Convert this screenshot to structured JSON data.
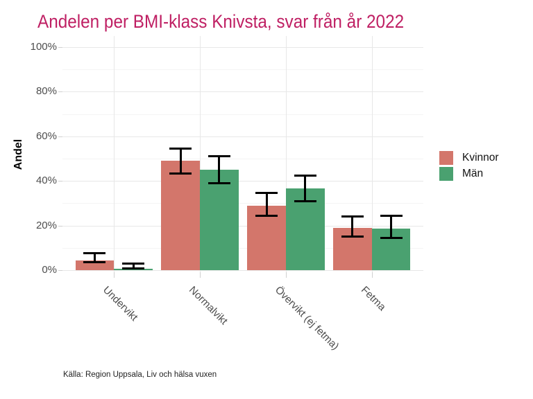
{
  "chart_data": {
    "type": "bar",
    "title": "Andelen per BMI-klass Knivsta, svar från år 2022",
    "ylabel": "Andel",
    "xlabel": "",
    "caption": "Källa: Region Uppsala, Liv och hälsa vuxen",
    "categories": [
      "Undervikt",
      "Normalvikt",
      "Övervikt (ej fetma)",
      "Fetma"
    ],
    "ylim": [
      0,
      100
    ],
    "y_tick_labels": [
      "0%",
      "20%",
      "40%",
      "60%",
      "80%",
      "100%"
    ],
    "y_major_ticks": [
      0,
      20,
      40,
      60,
      80,
      100
    ],
    "y_minor_ticks": [
      10,
      30,
      50,
      70,
      90
    ],
    "grid": "horizontal major+minor, vertical major at categories",
    "legend_position": "right",
    "error_bars": "confidence interval caps on each bar",
    "series": [
      {
        "name": "Kvinnor",
        "color": "#d3766b",
        "values": [
          4.5,
          49,
          29,
          19
        ],
        "ci_low": [
          3,
          43,
          24,
          14.5
        ],
        "ci_high": [
          8,
          55,
          35,
          24.5
        ]
      },
      {
        "name": "Män",
        "color": "#4aa170",
        "values": [
          0.7,
          45,
          36.5,
          18.5
        ],
        "ci_low": [
          0.2,
          38.5,
          30.5,
          14
        ],
        "ci_high": [
          3.5,
          51.5,
          43,
          25
        ]
      }
    ]
  },
  "colors": {
    "title": "#bf1f63",
    "axis_text": "#4d4d4d",
    "grid_major": "#e7e7e7",
    "grid_minor": "#f4f4f4",
    "tick": "#d0d0d0",
    "error_bar": "#000000",
    "background": "#ffffff"
  }
}
